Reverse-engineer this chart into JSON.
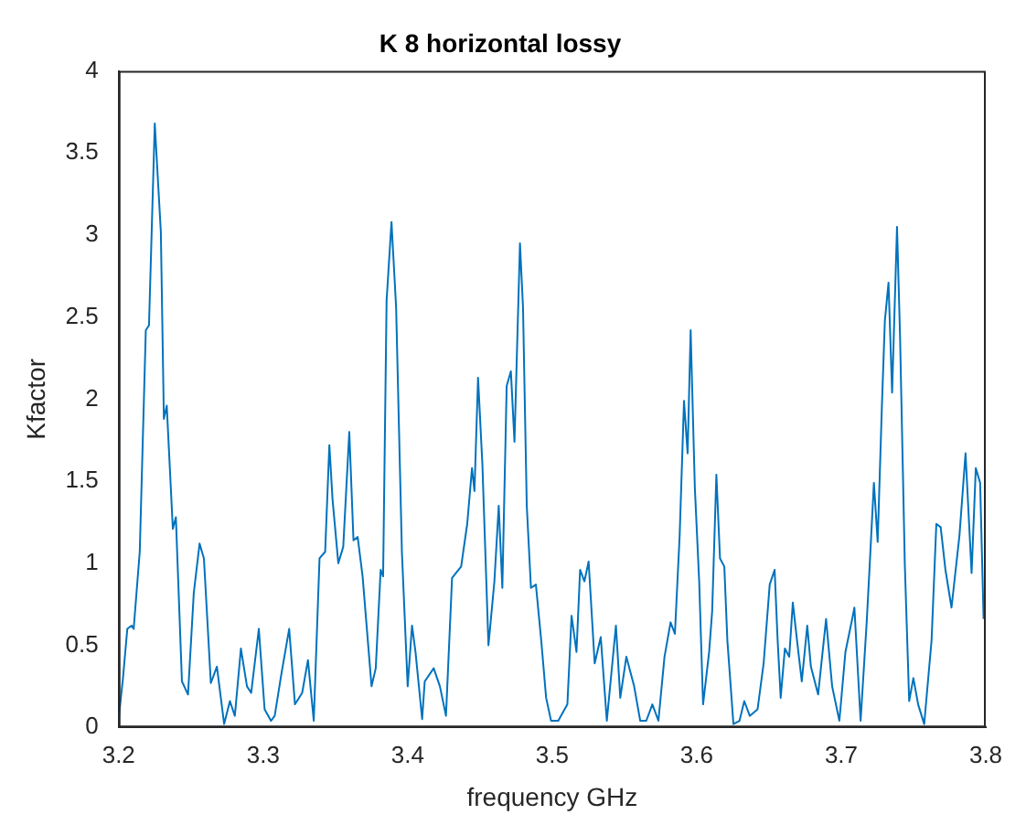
{
  "chart_data": {
    "type": "line",
    "title": "K 8 horizontal lossy",
    "xlabel": "frequency GHz",
    "ylabel": "Kfactor",
    "xlim": [
      3.2,
      3.8
    ],
    "xticks": [
      3.2,
      3.3,
      3.4,
      3.5,
      3.6,
      3.7,
      3.8
    ],
    "ylim": [
      0,
      4
    ],
    "yticks": [
      0,
      0.5,
      1,
      1.5,
      2,
      2.5,
      3,
      3.5,
      4
    ],
    "grid": false,
    "legend": false,
    "marker": "none",
    "line_style": "solid",
    "series": [
      {
        "color": "#0072bd",
        "x": [
          3.2,
          3.203,
          3.206,
          3.209,
          3.2104,
          3.2146,
          3.2188,
          3.221,
          3.225,
          3.2292,
          3.2313,
          3.2333,
          3.2375,
          3.2396,
          3.2438,
          3.248,
          3.252,
          3.256,
          3.259,
          3.2638,
          3.268,
          3.273,
          3.277,
          3.2804,
          3.2846,
          3.2888,
          3.2917,
          3.297,
          3.301,
          3.3054,
          3.308,
          3.3125,
          3.318,
          3.322,
          3.327,
          3.331,
          3.335,
          3.339,
          3.3429,
          3.3458,
          3.348,
          3.352,
          3.3554,
          3.3596,
          3.3625,
          3.3654,
          3.3688,
          3.375,
          3.3779,
          3.3813,
          3.383,
          3.3854,
          3.3888,
          3.392,
          3.396,
          3.4,
          3.403,
          3.4054,
          3.41,
          3.4118,
          3.418,
          3.4223,
          3.4265,
          3.4307,
          3.437,
          3.4412,
          3.4445,
          3.4462,
          3.4487,
          3.4517,
          3.4559,
          3.46,
          3.463,
          3.4655,
          3.4685,
          3.4714,
          3.4739,
          3.4777,
          3.4798,
          3.4824,
          3.4853,
          3.4887,
          3.4924,
          3.4958,
          3.4992,
          3.5042,
          3.5105,
          3.5134,
          3.5168,
          3.5193,
          3.5223,
          3.5252,
          3.5294,
          3.5336,
          3.5378,
          3.5441,
          3.5471,
          3.5513,
          3.5567,
          3.5609,
          3.5651,
          3.5693,
          3.5735,
          3.5777,
          3.5819,
          3.5849,
          3.5882,
          3.5912,
          3.5937,
          3.5958,
          3.5987,
          3.6017,
          3.6044,
          3.6086,
          3.6107,
          3.6136,
          3.6161,
          3.6191,
          3.6212,
          3.6254,
          3.6296,
          3.6329,
          3.6367,
          3.6421,
          3.6463,
          3.6505,
          3.6539,
          3.656,
          3.6581,
          3.661,
          3.664,
          3.6665,
          3.6694,
          3.6727,
          3.6765,
          3.679,
          3.684,
          3.6895,
          3.6937,
          3.6987,
          3.7029,
          3.7078,
          3.7091,
          3.7134,
          3.7176,
          3.7197,
          3.7226,
          3.7252,
          3.7281,
          3.7302,
          3.7327,
          3.7352,
          3.7386,
          3.7407,
          3.744,
          3.747,
          3.7499,
          3.7532,
          3.7574,
          3.7625,
          3.7658,
          3.7688,
          3.7721,
          3.7763,
          3.7818,
          3.786,
          3.7902,
          3.7931,
          3.7961,
          3.7985
        ],
        "values": [
          0.05,
          0.3,
          0.6,
          0.62,
          0.6,
          1.07,
          2.42,
          2.45,
          3.68,
          3.02,
          1.88,
          1.96,
          1.21,
          1.28,
          0.28,
          0.2,
          0.82,
          1.12,
          1.03,
          0.27,
          0.37,
          0.02,
          0.16,
          0.07,
          0.48,
          0.25,
          0.21,
          0.6,
          0.11,
          0.04,
          0.07,
          0.32,
          0.6,
          0.14,
          0.21,
          0.41,
          0.04,
          1.03,
          1.07,
          1.72,
          1.39,
          1.0,
          1.1,
          1.8,
          1.14,
          1.16,
          0.92,
          0.25,
          0.36,
          0.96,
          0.92,
          2.6,
          3.08,
          2.56,
          1.07,
          0.25,
          0.62,
          0.46,
          0.05,
          0.28,
          0.36,
          0.25,
          0.07,
          0.91,
          0.98,
          1.24,
          1.58,
          1.44,
          2.13,
          1.6,
          0.5,
          0.89,
          1.35,
          0.85,
          2.08,
          2.17,
          1.74,
          2.95,
          2.56,
          1.35,
          0.85,
          0.87,
          0.53,
          0.18,
          0.04,
          0.04,
          0.14,
          0.68,
          0.46,
          0.96,
          0.89,
          1.01,
          0.39,
          0.55,
          0.04,
          0.62,
          0.18,
          0.43,
          0.25,
          0.04,
          0.04,
          0.14,
          0.04,
          0.43,
          0.64,
          0.57,
          1.17,
          1.99,
          1.67,
          2.42,
          1.46,
          0.89,
          0.14,
          0.46,
          0.71,
          1.54,
          1.03,
          0.98,
          0.53,
          0.02,
          0.04,
          0.16,
          0.07,
          0.11,
          0.39,
          0.87,
          0.96,
          0.53,
          0.18,
          0.48,
          0.43,
          0.76,
          0.53,
          0.28,
          0.62,
          0.37,
          0.2,
          0.66,
          0.25,
          0.04,
          0.46,
          0.67,
          0.73,
          0.04,
          0.64,
          0.99,
          1.49,
          1.13,
          1.95,
          2.48,
          2.71,
          2.04,
          3.05,
          2.38,
          0.99,
          0.16,
          0.3,
          0.14,
          0.02,
          0.53,
          1.24,
          1.22,
          0.96,
          0.73,
          1.17,
          1.67,
          0.94,
          1.58,
          1.49,
          0.66
        ]
      }
    ]
  }
}
